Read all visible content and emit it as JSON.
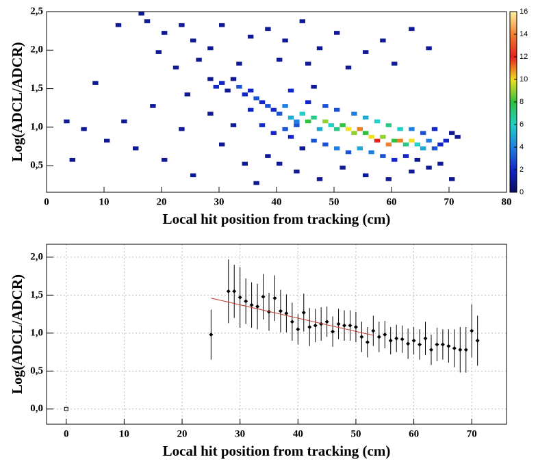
{
  "chart_data": [
    {
      "type": "heatmap",
      "x_label": "Local hit position from tracking (cm)",
      "y_label": "Log(ADCL/ADCR)",
      "xlim": [
        0,
        80
      ],
      "ylim": [
        0.155,
        2.5
      ],
      "xticks": [
        0,
        10,
        20,
        30,
        40,
        50,
        60,
        70,
        80
      ],
      "yticks": [
        {
          "value": 0.5,
          "label": "0,5"
        },
        {
          "value": 1,
          "label": "1,0"
        },
        {
          "value": 1.5,
          "label": "1,5"
        },
        {
          "value": 2,
          "label": "2,0"
        },
        {
          "value": 2.5,
          "label": "2,5"
        }
      ],
      "zlim": [
        0,
        16
      ],
      "zticks": [
        0,
        2,
        4,
        6,
        8,
        10,
        12,
        14,
        16
      ],
      "palette": [
        "#0b0b5e",
        "#1226c8",
        "#1f7fe0",
        "#20d0c8",
        "#30c040",
        "#f0e020",
        "#e82020",
        "#f08030",
        "#fff0a0"
      ],
      "bin_width": 1,
      "bin_height": 0.05,
      "cells": [
        [
          16,
          2.45,
          1
        ],
        [
          17,
          2.35,
          1
        ],
        [
          20,
          2.2,
          1
        ],
        [
          23,
          2.3,
          1
        ],
        [
          12,
          2.3,
          1
        ],
        [
          25,
          2.1,
          1
        ],
        [
          28,
          2.0,
          1
        ],
        [
          19,
          1.95,
          1
        ],
        [
          30,
          2.3,
          1
        ],
        [
          35,
          2.15,
          1
        ],
        [
          38,
          2.25,
          1
        ],
        [
          41,
          2.1,
          1
        ],
        [
          44,
          2.35,
          1
        ],
        [
          47,
          2.0,
          1
        ],
        [
          50,
          2.2,
          1
        ],
        [
          55,
          1.95,
          1
        ],
        [
          58,
          2.1,
          1
        ],
        [
          63,
          2.25,
          1
        ],
        [
          66,
          2.0,
          1
        ],
        [
          22,
          1.75,
          1
        ],
        [
          26,
          1.85,
          1
        ],
        [
          33,
          1.8,
          1
        ],
        [
          40,
          1.85,
          1
        ],
        [
          45,
          1.8,
          1
        ],
        [
          52,
          1.75,
          1
        ],
        [
          60,
          1.8,
          1
        ],
        [
          8,
          1.55,
          1
        ],
        [
          3,
          1.05,
          1
        ],
        [
          6,
          0.95,
          1
        ],
        [
          4,
          0.55,
          1
        ],
        [
          10,
          0.8,
          1
        ],
        [
          13,
          1.05,
          1
        ],
        [
          15,
          0.7,
          1
        ],
        [
          18,
          1.25,
          1
        ],
        [
          20,
          0.55,
          1
        ],
        [
          23,
          0.95,
          1
        ],
        [
          24,
          1.4,
          1
        ],
        [
          25,
          0.35,
          1
        ],
        [
          28,
          1.6,
          1
        ],
        [
          29,
          1.5,
          2
        ],
        [
          30,
          1.55,
          2
        ],
        [
          31,
          1.45,
          1
        ],
        [
          32,
          1.6,
          1
        ],
        [
          33,
          1.5,
          3
        ],
        [
          34,
          1.4,
          2
        ],
        [
          35,
          1.45,
          2
        ],
        [
          36,
          1.35,
          3
        ],
        [
          37,
          1.3,
          2
        ],
        [
          28,
          1.15,
          1
        ],
        [
          30,
          0.75,
          1
        ],
        [
          32,
          1.0,
          1
        ],
        [
          34,
          0.5,
          1
        ],
        [
          35,
          1.2,
          2
        ],
        [
          36,
          0.25,
          1
        ],
        [
          38,
          1.25,
          3
        ],
        [
          39,
          1.2,
          2
        ],
        [
          40,
          1.15,
          3
        ],
        [
          41,
          1.25,
          4
        ],
        [
          42,
          1.1,
          5
        ],
        [
          43,
          1.05,
          4
        ],
        [
          44,
          1.15,
          6
        ],
        [
          45,
          1.05,
          8
        ],
        [
          46,
          1.1,
          7
        ],
        [
          47,
          0.95,
          5
        ],
        [
          48,
          1.05,
          9
        ],
        [
          49,
          1.0,
          6
        ],
        [
          50,
          0.95,
          7
        ],
        [
          51,
          1.0,
          8
        ],
        [
          52,
          0.95,
          10
        ],
        [
          53,
          0.9,
          9
        ],
        [
          54,
          0.95,
          11
        ],
        [
          55,
          0.9,
          8
        ],
        [
          56,
          0.85,
          10
        ],
        [
          57,
          0.8,
          12
        ],
        [
          58,
          0.85,
          9
        ],
        [
          59,
          0.75,
          14
        ],
        [
          60,
          0.8,
          8
        ],
        [
          61,
          0.8,
          11
        ],
        [
          62,
          0.75,
          7
        ],
        [
          63,
          0.8,
          10
        ],
        [
          64,
          0.75,
          6
        ],
        [
          65,
          0.7,
          5
        ],
        [
          66,
          0.8,
          4
        ],
        [
          67,
          0.7,
          3
        ],
        [
          68,
          0.75,
          2
        ],
        [
          69,
          0.8,
          2
        ],
        [
          70,
          0.9,
          1
        ],
        [
          71,
          0.85,
          1
        ],
        [
          42,
          0.85,
          2
        ],
        [
          44,
          0.7,
          1
        ],
        [
          46,
          0.8,
          3
        ],
        [
          48,
          0.75,
          3
        ],
        [
          50,
          0.7,
          4
        ],
        [
          52,
          0.65,
          3
        ],
        [
          54,
          0.7,
          5
        ],
        [
          56,
          0.65,
          4
        ],
        [
          58,
          0.6,
          3
        ],
        [
          60,
          0.55,
          2
        ],
        [
          62,
          0.6,
          2
        ],
        [
          64,
          0.55,
          1
        ],
        [
          66,
          0.45,
          1
        ],
        [
          45,
          1.3,
          2
        ],
        [
          48,
          1.25,
          3
        ],
        [
          50,
          1.2,
          3
        ],
        [
          53,
          1.15,
          4
        ],
        [
          55,
          1.1,
          5
        ],
        [
          57,
          1.05,
          6
        ],
        [
          59,
          1.0,
          7
        ],
        [
          61,
          0.95,
          6
        ],
        [
          63,
          0.95,
          4
        ],
        [
          65,
          0.9,
          3
        ],
        [
          67,
          0.95,
          2
        ],
        [
          40,
          0.5,
          1
        ],
        [
          43,
          0.4,
          1
        ],
        [
          47,
          0.3,
          1
        ],
        [
          51,
          0.45,
          1
        ],
        [
          55,
          0.35,
          1
        ],
        [
          59,
          0.3,
          1
        ],
        [
          63,
          0.4,
          1
        ],
        [
          68,
          0.5,
          1
        ],
        [
          70,
          0.3,
          1
        ],
        [
          38,
          0.6,
          1
        ],
        [
          42,
          1.45,
          2
        ],
        [
          46,
          1.5,
          1
        ],
        [
          37,
          1.0,
          2
        ],
        [
          39,
          0.9,
          2
        ],
        [
          41,
          0.95,
          3
        ],
        [
          43,
          1.0,
          3
        ]
      ]
    },
    {
      "type": "errorbar",
      "x_label": "Local hit position from tracking (cm)",
      "y_label": "Log(ADCL/ADCR)",
      "xlim": [
        -3.4,
        76
      ],
      "ylim": [
        -0.2,
        2.17
      ],
      "xticks": [
        0,
        10,
        20,
        30,
        40,
        50,
        60,
        70
      ],
      "yticks": [
        {
          "value": 0,
          "label": "0,0"
        },
        {
          "value": 0.5,
          "label": "0,5"
        },
        {
          "value": 1,
          "label": "1,0"
        },
        {
          "value": 1.5,
          "label": "1,5"
        },
        {
          "value": 2,
          "label": "2,0"
        }
      ],
      "grid": true,
      "color": "#000000",
      "x": [
        0,
        25,
        28,
        29,
        30,
        31,
        32,
        33,
        34,
        35,
        36,
        37,
        38,
        39,
        40,
        41,
        42,
        43,
        44,
        45,
        46,
        47,
        48,
        49,
        50,
        51,
        52,
        53,
        54,
        55,
        56,
        57,
        58,
        59,
        60,
        61,
        62,
        63,
        64,
        65,
        66,
        67,
        68,
        69,
        70,
        71
      ],
      "values": [
        0,
        0.98,
        1.55,
        1.55,
        1.47,
        1.42,
        1.37,
        1.35,
        1.48,
        1.28,
        1.46,
        1.29,
        1.26,
        1.15,
        1.05,
        1.27,
        1.08,
        1.1,
        1.12,
        1.15,
        1.02,
        1.12,
        1.1,
        1.1,
        1.08,
        0.95,
        0.88,
        1.03,
        0.95,
        0.98,
        0.9,
        0.93,
        0.92,
        0.86,
        0.9,
        0.85,
        0.93,
        0.78,
        0.85,
        0.85,
        0.83,
        0.8,
        0.78,
        0.78,
        1.03,
        0.9
      ],
      "errors": [
        0,
        0.33,
        0.42,
        0.35,
        0.4,
        0.3,
        0.3,
        0.3,
        0.3,
        0.25,
        0.3,
        0.28,
        0.25,
        0.25,
        0.2,
        0.25,
        0.25,
        0.22,
        0.22,
        0.2,
        0.2,
        0.2,
        0.2,
        0.2,
        0.2,
        0.2,
        0.2,
        0.2,
        0.2,
        0.18,
        0.18,
        0.18,
        0.18,
        0.2,
        0.18,
        0.2,
        0.22,
        0.2,
        0.22,
        0.2,
        0.22,
        0.25,
        0.3,
        0.3,
        0.35,
        0.33
      ],
      "fit": {
        "color": "#c0392b",
        "x": [
          25,
          53
        ],
        "y": [
          1.46,
          0.97
        ]
      }
    }
  ]
}
